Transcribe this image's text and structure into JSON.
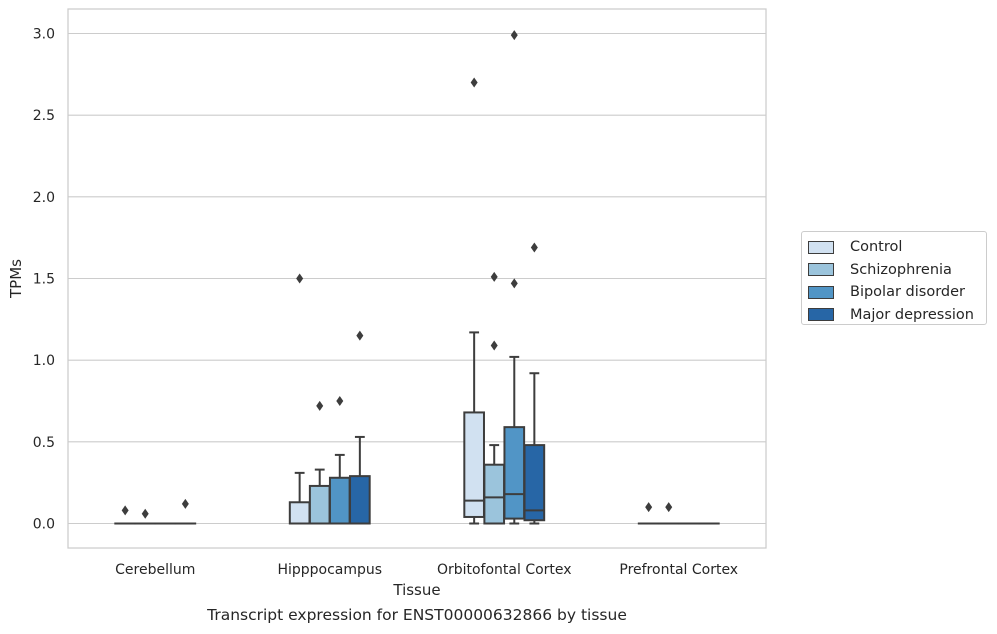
{
  "chart_data": {
    "type": "boxplot",
    "title": "Transcript expression for ENST00000632866 by tissue",
    "xlabel": "Tissue",
    "ylabel": "TPMs",
    "ylim": [
      -0.15,
      3.15
    ],
    "yticks": [
      0.0,
      0.5,
      1.0,
      1.5,
      2.0,
      2.5,
      3.0
    ],
    "ytick_labels": [
      "0.0",
      "0.5",
      "1.0",
      "1.5",
      "2.0",
      "2.5",
      "3.0"
    ],
    "grid": true,
    "legend_position": "right",
    "categories": [
      "Cerebellum",
      "Hipppocampus",
      "Orbitofontal Cortex",
      "Prefrontal Cortex"
    ],
    "series": [
      {
        "name": "Control",
        "color": "#d1e1f1",
        "boxes": [
          {
            "q1": 0.0,
            "median": 0.0,
            "q3": 0.0,
            "whislo": 0.0,
            "whishi": 0.0,
            "fliers": [
              0.08
            ]
          },
          {
            "q1": 0.0,
            "median": 0.0,
            "q3": 0.13,
            "whislo": 0.0,
            "whishi": 0.31,
            "fliers": [
              1.5
            ]
          },
          {
            "q1": 0.04,
            "median": 0.14,
            "q3": 0.68,
            "whislo": 0.0,
            "whishi": 1.17,
            "fliers": [
              2.7
            ]
          },
          {
            "q1": 0.0,
            "median": 0.0,
            "q3": 0.0,
            "whislo": 0.0,
            "whishi": 0.0,
            "fliers": [
              0.1
            ]
          }
        ]
      },
      {
        "name": "Schizophrenia",
        "color": "#9bc4dc",
        "boxes": [
          {
            "q1": 0.0,
            "median": 0.0,
            "q3": 0.0,
            "whislo": 0.0,
            "whishi": 0.0,
            "fliers": [
              0.06
            ]
          },
          {
            "q1": 0.0,
            "median": 0.0,
            "q3": 0.23,
            "whislo": 0.0,
            "whishi": 0.33,
            "fliers": [
              0.72
            ]
          },
          {
            "q1": 0.0,
            "median": 0.16,
            "q3": 0.36,
            "whislo": 0.0,
            "whishi": 0.48,
            "fliers": [
              1.09,
              1.51
            ]
          },
          {
            "q1": 0.0,
            "median": 0.0,
            "q3": 0.0,
            "whislo": 0.0,
            "whishi": 0.0,
            "fliers": [
              0.1
            ]
          }
        ]
      },
      {
        "name": "Bipolar disorder",
        "color": "#5195c6",
        "boxes": [
          {
            "q1": 0.0,
            "median": 0.0,
            "q3": 0.0,
            "whislo": 0.0,
            "whishi": 0.0,
            "fliers": []
          },
          {
            "q1": 0.0,
            "median": 0.0,
            "q3": 0.28,
            "whislo": 0.0,
            "whishi": 0.42,
            "fliers": [
              0.75
            ]
          },
          {
            "q1": 0.03,
            "median": 0.18,
            "q3": 0.59,
            "whislo": 0.0,
            "whishi": 1.02,
            "fliers": [
              1.47,
              2.99
            ]
          },
          {
            "q1": 0.0,
            "median": 0.0,
            "q3": 0.0,
            "whislo": 0.0,
            "whishi": 0.0,
            "fliers": []
          }
        ]
      },
      {
        "name": "Major depression",
        "color": "#2766a6",
        "boxes": [
          {
            "q1": 0.0,
            "median": 0.0,
            "q3": 0.0,
            "whislo": 0.0,
            "whishi": 0.0,
            "fliers": [
              0.12
            ]
          },
          {
            "q1": 0.0,
            "median": 0.0,
            "q3": 0.29,
            "whislo": 0.0,
            "whishi": 0.53,
            "fliers": [
              1.15
            ]
          },
          {
            "q1": 0.02,
            "median": 0.08,
            "q3": 0.48,
            "whislo": 0.0,
            "whishi": 0.92,
            "fliers": [
              1.69
            ]
          },
          {
            "q1": 0.0,
            "median": 0.0,
            "q3": 0.0,
            "whislo": 0.0,
            "whishi": 0.0,
            "fliers": []
          }
        ]
      }
    ]
  }
}
